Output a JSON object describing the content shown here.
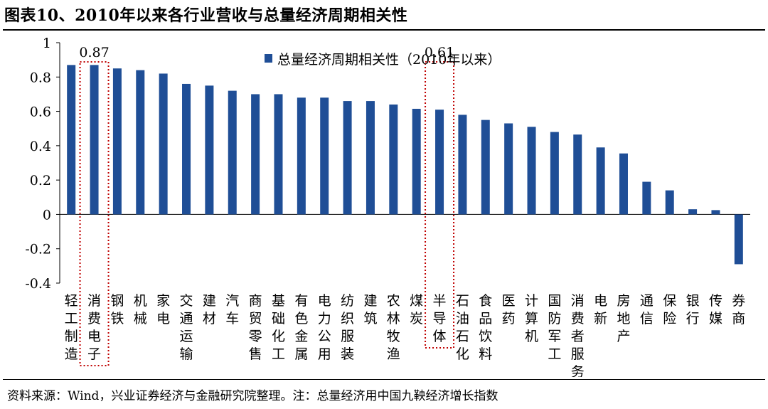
{
  "title": "图表10、2010年以来各行业营收与总量经济周期相关性",
  "note": "资料来源：Wind，兴业证券经济与金融研究院整理。注：总量经济用中国九鞅经济增长指数",
  "colors": {
    "bar": "#1f4e96",
    "highlight": "#c00000"
  },
  "chart_data": {
    "type": "bar",
    "categories": [
      "轻工制造",
      "消费电子",
      "钢铁",
      "机械",
      "家电",
      "交通运输",
      "建材",
      "汽车",
      "商贸零售",
      "基础化工",
      "有色金属",
      "电力公用",
      "纺织服装",
      "建筑",
      "农林牧渔",
      "煤炭",
      "半导体",
      "石油石化",
      "食品饮料",
      "医药",
      "计算机",
      "国防军工",
      "消费者服务",
      "电新",
      "房地产",
      "通信",
      "保险",
      "银行",
      "传媒",
      "券商"
    ],
    "series": [
      {
        "name": "总量经济周期相关性（2010年以来）",
        "values": [
          0.87,
          0.87,
          0.85,
          0.84,
          0.82,
          0.76,
          0.75,
          0.72,
          0.7,
          0.7,
          0.68,
          0.68,
          0.66,
          0.66,
          0.64,
          0.615,
          0.61,
          0.58,
          0.55,
          0.53,
          0.51,
          0.48,
          0.465,
          0.39,
          0.355,
          0.19,
          0.14,
          0.03,
          0.025,
          -0.29
        ]
      }
    ],
    "ylim": [
      -0.4,
      1
    ],
    "yticks": [
      "1",
      "0.8",
      "0.6",
      "0.4",
      "0.2",
      "0",
      "-0.2",
      "-0.4"
    ],
    "annotations": [
      {
        "category": "消费电子",
        "text": "0.87"
      },
      {
        "category": "半导体",
        "text": "0.61"
      }
    ],
    "legend_position": "top-center",
    "grid": false
  }
}
